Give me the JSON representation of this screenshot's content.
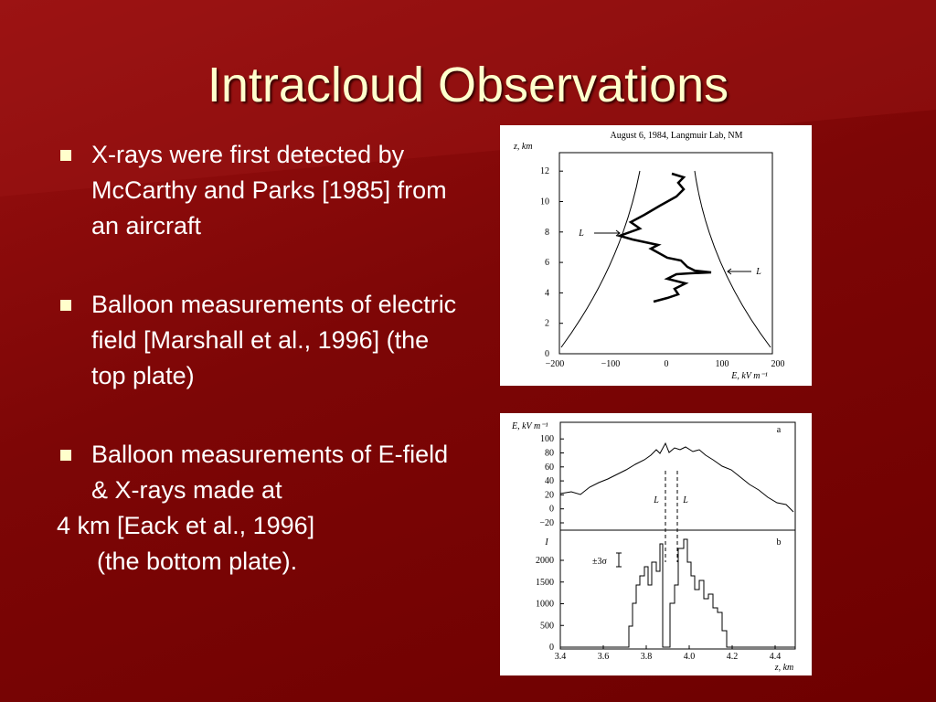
{
  "title": "Intracloud Observations",
  "bullets": [
    "X-rays were first detected by McCarthy and Parks [1985] from an aircraft",
    "Balloon measurements of electric field [Marshall et al., 1996] (the top plate)",
    "Balloon measurements of E-field & X-rays made at"
  ],
  "continuation": [
    "4 km [Eack et al., 1996]",
    "(the bottom plate)."
  ],
  "figure_top": {
    "title": "August 6, 1984, Langmuir Lab, NM",
    "y_label": "z, km",
    "x_label": "E, kV m⁻¹",
    "yticks": [
      "0",
      "2",
      "4",
      "6",
      "8",
      "10",
      "12"
    ],
    "xticks": [
      "−200",
      "−100",
      "0",
      "100",
      "200"
    ],
    "annotations": [
      "L",
      "L"
    ]
  },
  "figure_bottom": {
    "panel_a_label": "a",
    "panel_b_label": "b",
    "a_y_label": "E, kV m⁻¹",
    "b_y_label": "I",
    "a_yticks": [
      "−20",
      "0",
      "20",
      "40",
      "60",
      "80",
      "100"
    ],
    "b_yticks": [
      "0",
      "500",
      "1000",
      "1500",
      "2000"
    ],
    "xticks": [
      "3.4",
      "3.6",
      "3.8",
      "4.0",
      "4.2",
      "4.4"
    ],
    "x_label": "z, km",
    "sigma": "±3σ",
    "annotations": [
      "L",
      "L"
    ]
  }
}
